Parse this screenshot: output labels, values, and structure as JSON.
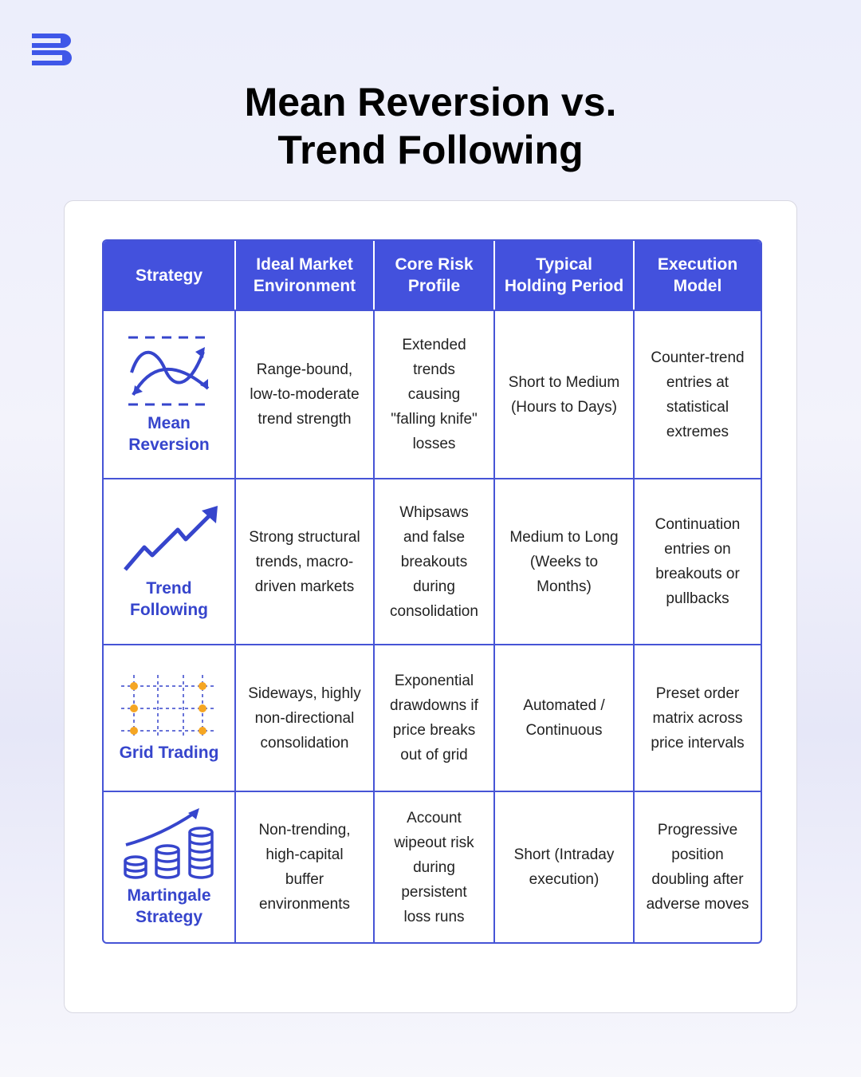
{
  "header": {
    "title": [
      "Mean Reversion vs.",
      "Trend Following"
    ]
  },
  "table": {
    "columns": [
      "Strategy",
      "Ideal Market Environment",
      "Core Risk Profile",
      "Typical Holding Period",
      "Execution Model"
    ],
    "rows": [
      [
        "Mean Reversion",
        "Range-bound, low-to-moderate trend strength",
        "Extended trends causing \"falling knife\" losses",
        "Short to Medium (Hours to Days)",
        "Counter-trend entries at statistical extremes"
      ],
      [
        "Trend Following",
        "Strong structural trends, macro-driven markets",
        "Whipsaws and false breakouts during consolidation",
        "Medium to Long (Weeks to Months)",
        "Continuation entries on breakouts or pullbacks"
      ],
      [
        "Grid Trading",
        "Sideways, highly non-directional consolidation",
        "Exponential drawdowns if price breaks out of grid",
        "Automated / Continuous",
        "Preset order matrix across price intervals"
      ],
      [
        "Martingale Strategy",
        "Non-trending, high-capital buffer environments",
        "Account wipeout risk during persistent loss runs",
        "Short (Intraday execution)",
        "Progressive position doubling after adverse moves"
      ]
    ]
  }
}
